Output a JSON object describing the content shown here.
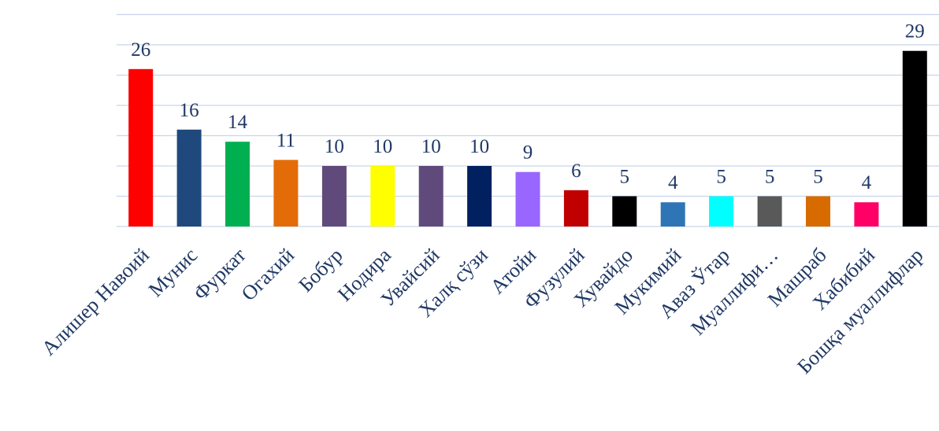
{
  "chart_data": {
    "type": "bar",
    "title": "",
    "xlabel": "",
    "ylabel": "",
    "ylim": [
      0,
      35
    ],
    "grid": true,
    "legend": "none",
    "categories": [
      "Алишер Навоий",
      "Мунис",
      "Фуркат",
      "Огахий",
      "Бобур",
      "Нодира",
      "Увайсий",
      "Халқ сўзи",
      "Атойи",
      "Фузулий",
      "Хувайдо",
      "Мукимий",
      "Аваз Ўтар",
      "Муаллифи…",
      "Машраб",
      "Хабибий",
      "Бошқа муаллифлар"
    ],
    "values": [
      26,
      16,
      14,
      11,
      10,
      10,
      10,
      10,
      9,
      6,
      5,
      4,
      5,
      5,
      5,
      4,
      29
    ],
    "data_labels": [
      "26",
      "16",
      "14",
      "11",
      "10",
      "10",
      "10",
      "10",
      "9",
      "6",
      "5",
      "4",
      "5",
      "5",
      "5",
      "4",
      "29"
    ],
    "colors": [
      "#ff0000",
      "#1f497d",
      "#00b050",
      "#e36c09",
      "#604a7b",
      "#ffff00",
      "#604a7b",
      "#002060",
      "#9966ff",
      "#c00000",
      "#000000",
      "#2e75b6",
      "#00ffff",
      "#595959",
      "#d86b00",
      "#ff0066",
      "#000000"
    ],
    "label_color": "#1f3864",
    "grid_color": "#c9d5ea"
  }
}
